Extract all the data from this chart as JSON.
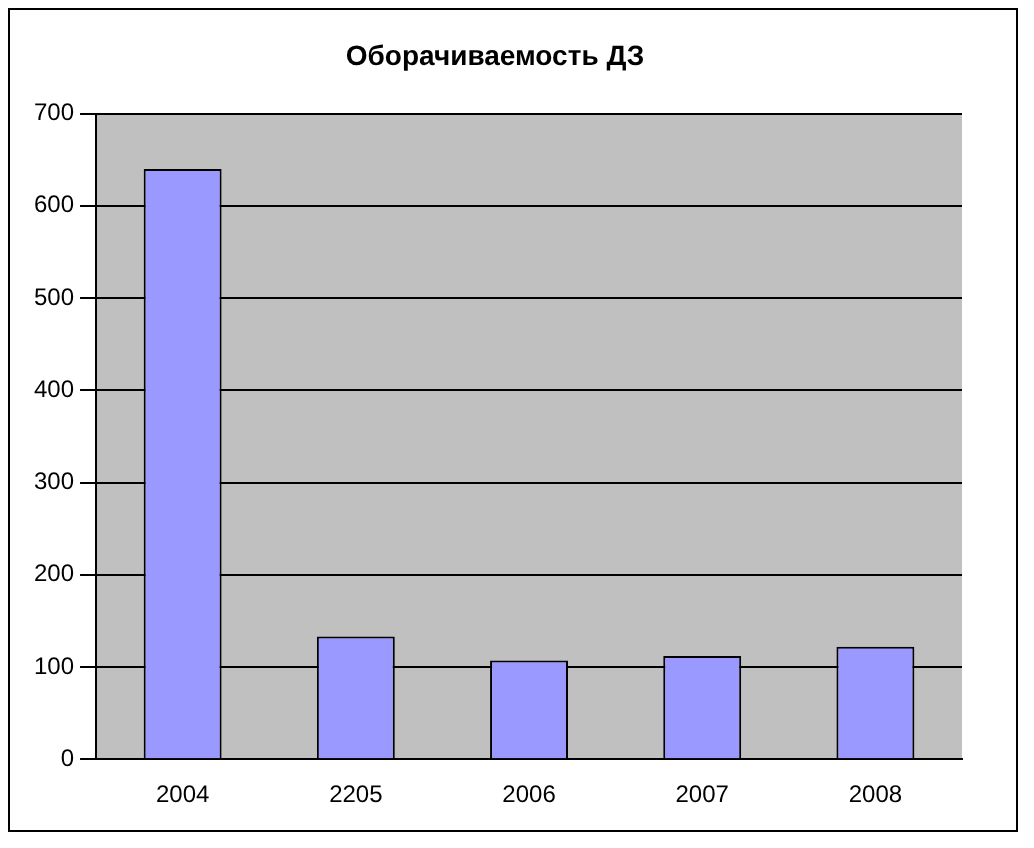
{
  "chart_data": {
    "type": "bar",
    "title": "Оборачиваемость ДЗ",
    "categories": [
      "2004",
      "2205",
      "2006",
      "2007",
      "2008"
    ],
    "values": [
      640,
      133,
      107,
      112,
      122
    ],
    "color": "#9999ff",
    "ylim": [
      0,
      700
    ],
    "yticks": [
      0,
      100,
      200,
      300,
      400,
      500,
      600,
      700
    ],
    "grid": "y"
  }
}
